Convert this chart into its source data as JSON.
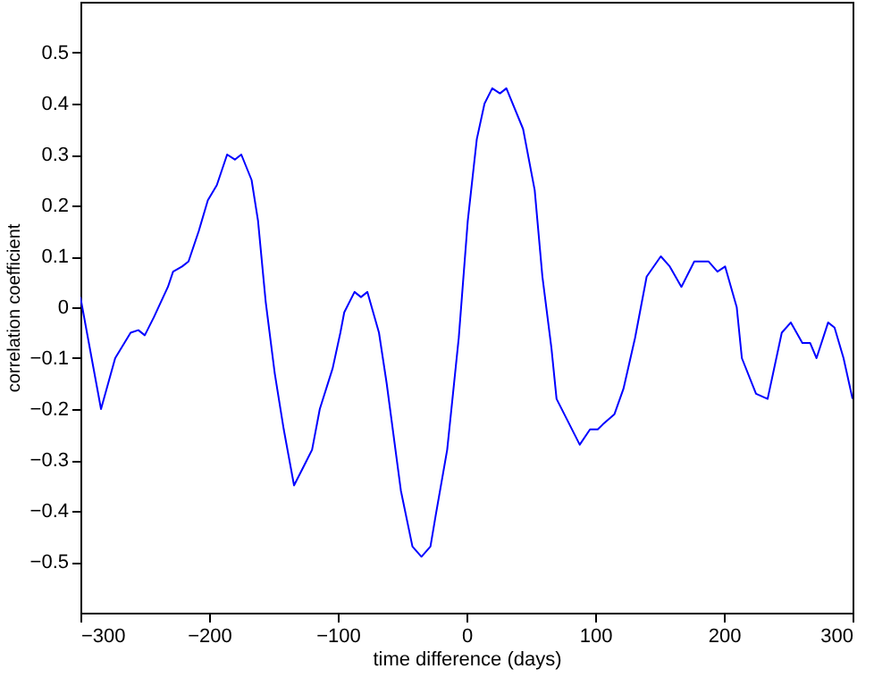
{
  "chart_data": {
    "type": "line",
    "xlabel": "time difference (days)",
    "ylabel": "correlation coefficient",
    "xlim": [
      -300,
      300
    ],
    "ylim": [
      -0.6,
      0.6
    ],
    "xticks": [
      -300,
      -200,
      -100,
      0,
      100,
      200,
      300
    ],
    "yticks": [
      -0.5,
      -0.4,
      -0.3,
      -0.2,
      -0.1,
      0,
      0.1,
      0.2,
      0.3,
      0.4,
      0.5
    ],
    "grid": false,
    "series": [
      {
        "color": "#0000ff",
        "x": [
          -300,
          -284,
          -273,
          -261,
          -255,
          -250,
          -243,
          -232,
          -228,
          -221,
          -216,
          -208,
          -201,
          -194,
          -186,
          -180,
          -175,
          -167,
          -162,
          -156,
          -149,
          -142,
          -134,
          -126,
          -120,
          -114,
          -104,
          -98,
          -95,
          -87,
          -82,
          -77,
          -68,
          -62,
          -51,
          -42,
          -35,
          -28,
          -24,
          -15,
          -6,
          1,
          8,
          14,
          20,
          26,
          31,
          44,
          53,
          59,
          66,
          70,
          88,
          96,
          102,
          106,
          115,
          122,
          131,
          140,
          151,
          158,
          167,
          177,
          188,
          195,
          201,
          210,
          214,
          225,
          234,
          245,
          252,
          261,
          267,
          272,
          281,
          286,
          293,
          300
        ],
        "values": [
          0.02,
          -0.2,
          -0.1,
          -0.05,
          -0.045,
          -0.055,
          -0.02,
          0.04,
          0.07,
          0.08,
          0.09,
          0.15,
          0.21,
          0.24,
          0.3,
          0.29,
          0.3,
          0.25,
          0.17,
          0.01,
          -0.13,
          -0.24,
          -0.35,
          -0.31,
          -0.28,
          -0.2,
          -0.12,
          -0.05,
          -0.01,
          0.03,
          0.02,
          0.03,
          -0.05,
          -0.15,
          -0.36,
          -0.47,
          -0.49,
          -0.47,
          -0.41,
          -0.28,
          -0.06,
          0.17,
          0.33,
          0.4,
          0.43,
          0.42,
          0.43,
          0.35,
          0.23,
          0.06,
          -0.08,
          -0.18,
          -0.27,
          -0.24,
          -0.24,
          -0.23,
          -0.21,
          -0.16,
          -0.06,
          0.06,
          0.1,
          0.08,
          0.04,
          0.09,
          0.09,
          0.07,
          0.08,
          0,
          -0.1,
          -0.17,
          -0.18,
          -0.05,
          -0.03,
          -0.07,
          -0.07,
          -0.1,
          -0.03,
          -0.04,
          -0.1,
          -0.18
        ]
      }
    ]
  }
}
